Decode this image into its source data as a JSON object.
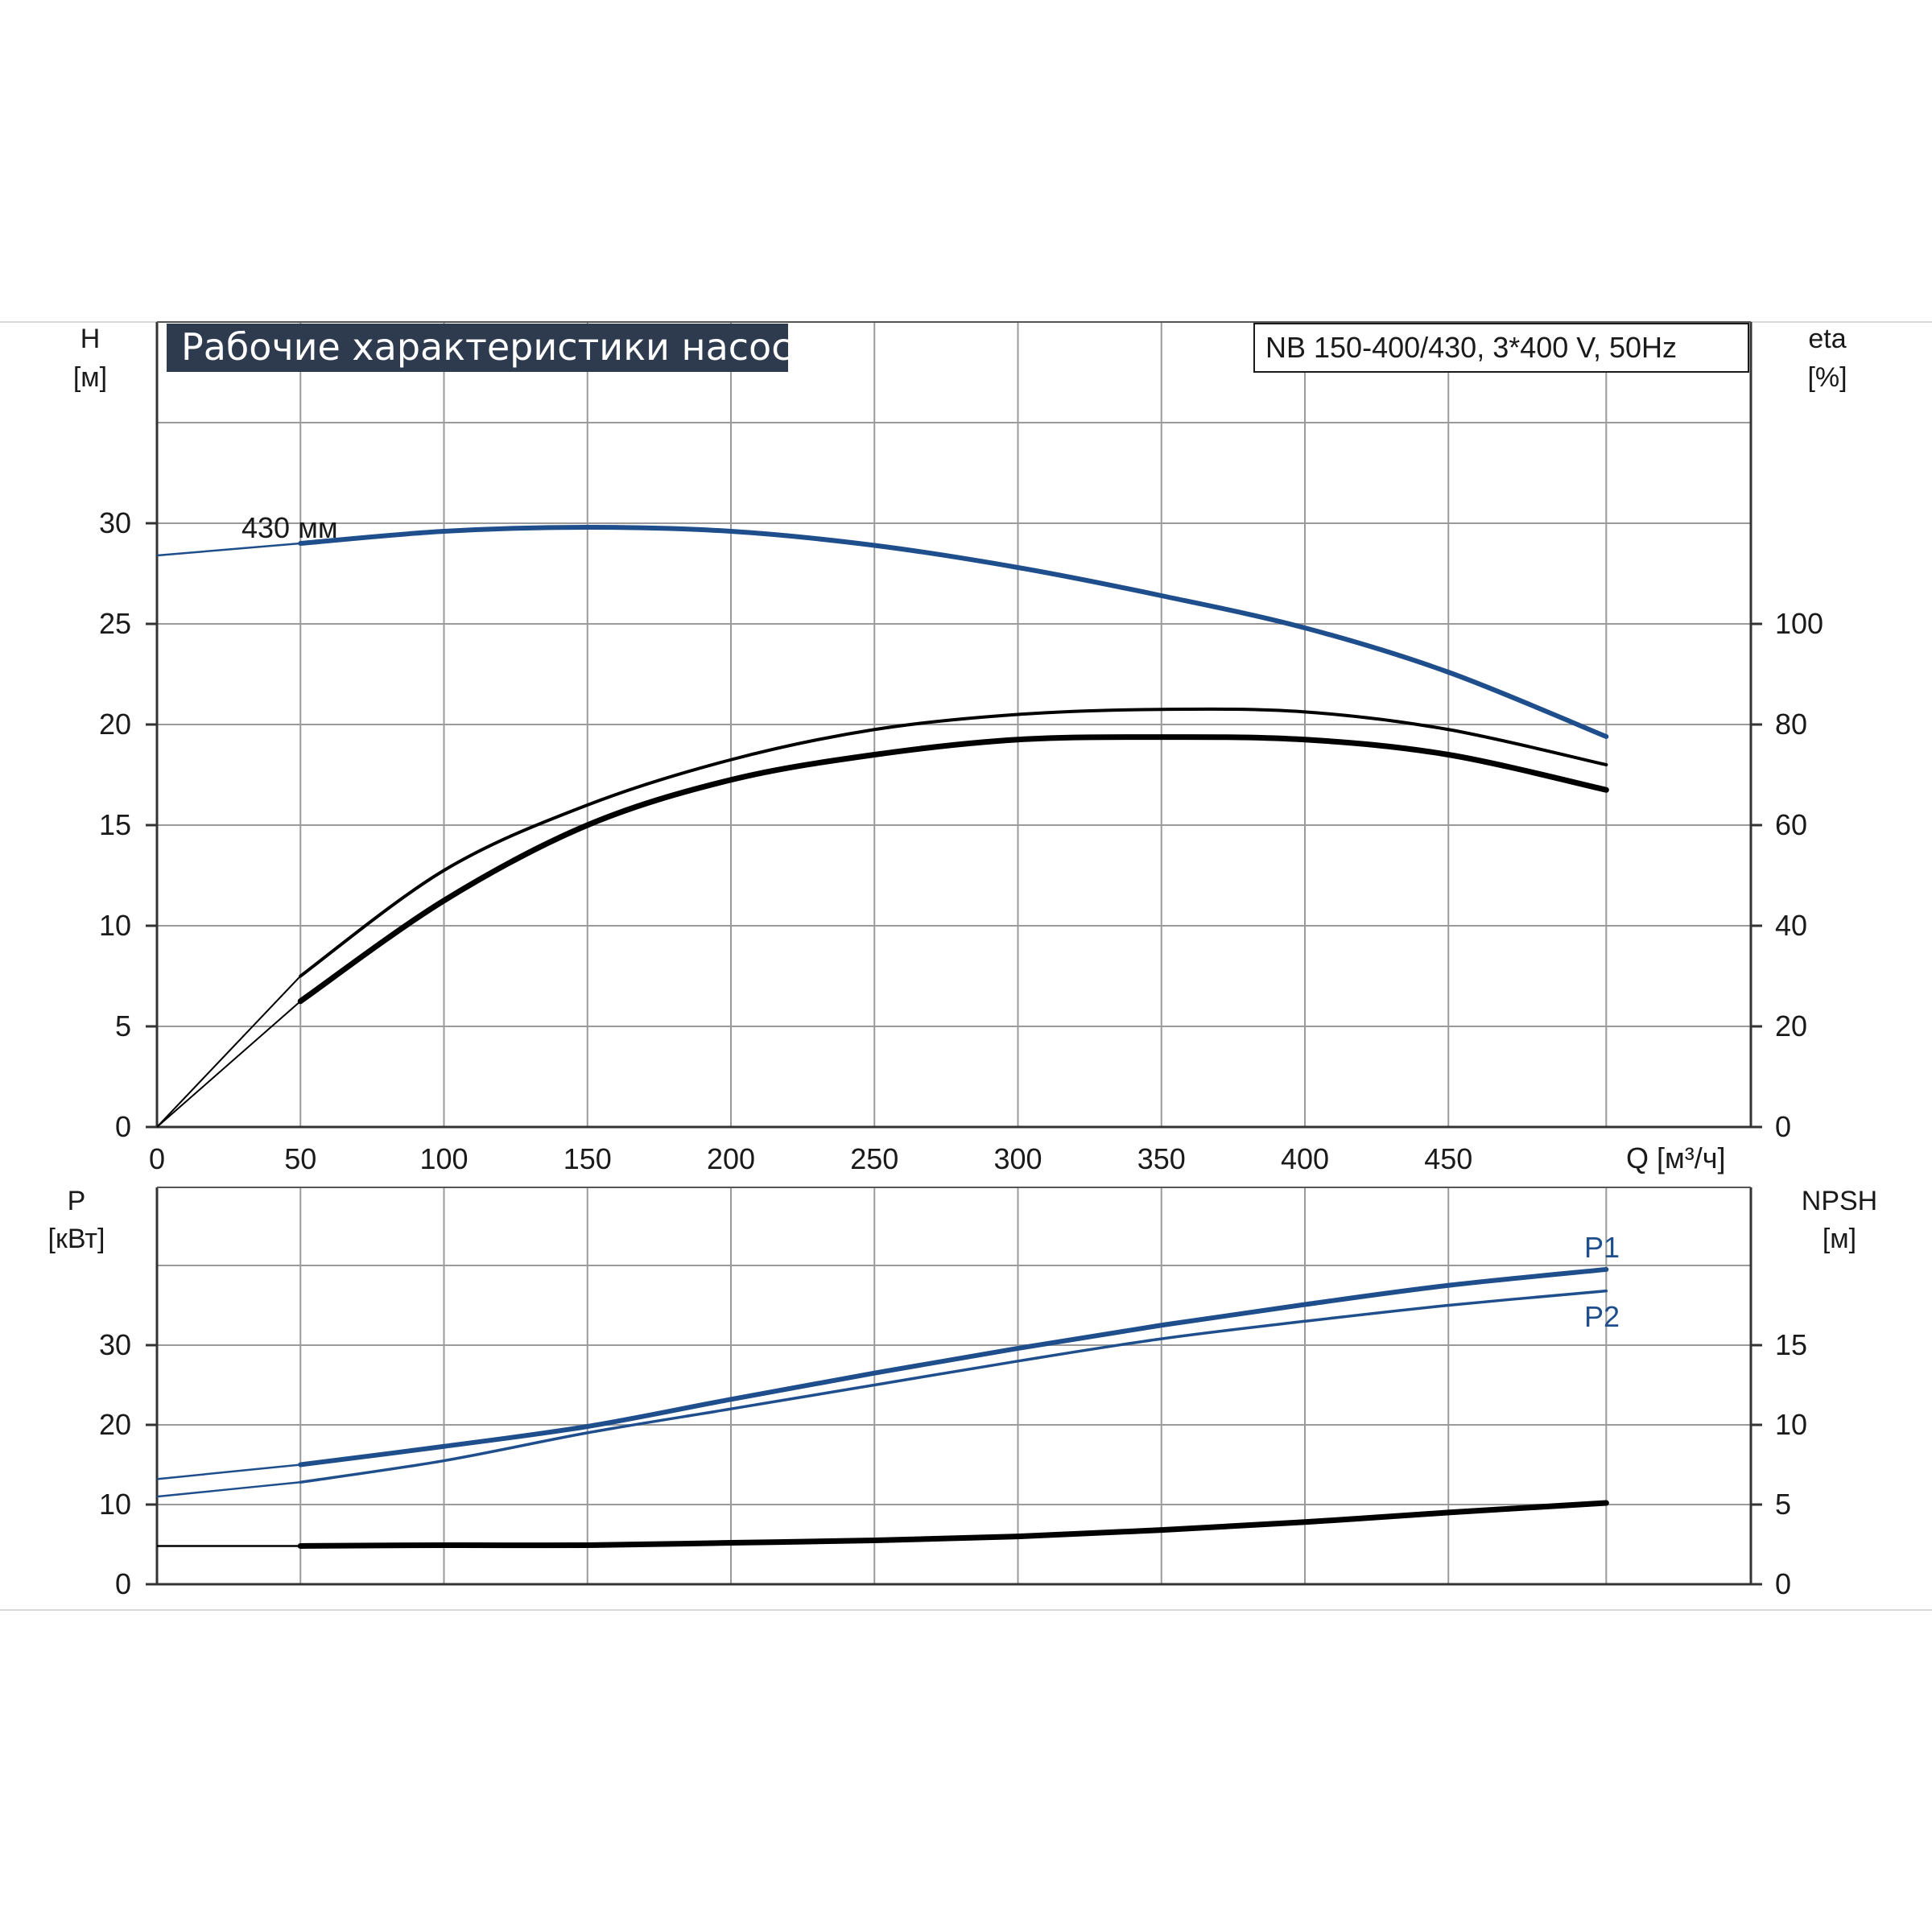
{
  "chart_data": [
    {
      "type": "line",
      "title": "Рабочие характеристики насоса",
      "subtitle": "NB 150-400/430, 3*400 V, 50Hz",
      "xlabel": "Q [м³/ч]",
      "xlim": [
        0,
        555
      ],
      "x_ticks": [
        "0",
        "50",
        "100",
        "150",
        "200",
        "250",
        "300",
        "350",
        "400",
        "450"
      ],
      "left_axis": {
        "label_top": "H",
        "label_unit": "[м]",
        "ylim": [
          0,
          35
        ],
        "ticks": [
          "0",
          "5",
          "10",
          "15",
          "20",
          "25",
          "30"
        ]
      },
      "right_axis": {
        "label_top": "eta",
        "label_unit": "[%]",
        "ylim": [
          0,
          140
        ],
        "ticks": [
          "0",
          "20",
          "40",
          "60",
          "80",
          "100"
        ]
      },
      "grid": true,
      "series": [
        {
          "name": "430 мм",
          "color": "#1f4e8c",
          "axis": "left",
          "x": [
            0,
            50,
            100,
            150,
            200,
            250,
            300,
            350,
            400,
            450,
            505
          ],
          "y": [
            28.4,
            29.0,
            29.6,
            29.8,
            29.6,
            28.9,
            27.8,
            26.4,
            24.8,
            22.6,
            19.4
          ],
          "dashed_from": 0,
          "solid_from": 50
        },
        {
          "color": "#000000",
          "axis": "right",
          "x": [
            0,
            50,
            100,
            150,
            200,
            250,
            300,
            350,
            400,
            450,
            505
          ],
          "y": [
            0,
            30,
            51,
            64,
            73,
            79,
            82,
            83,
            82.5,
            79,
            72
          ]
        },
        {
          "color": "#000000",
          "axis": "right",
          "x": [
            0,
            50,
            100,
            150,
            200,
            250,
            300,
            350,
            400,
            450,
            505
          ],
          "y": [
            0,
            25,
            45,
            60,
            69,
            74,
            77,
            77.5,
            77,
            74,
            67
          ]
        }
      ]
    },
    {
      "type": "line",
      "xlim": [
        0,
        555
      ],
      "left_axis": {
        "label_top": "P",
        "label_unit": "[кВт]",
        "ylim": [
          0,
          40
        ],
        "ticks": [
          "0",
          "10",
          "20",
          "30"
        ]
      },
      "right_axis": {
        "label_top": "NPSH",
        "label_unit": "[м]",
        "ylim": [
          0,
          20
        ],
        "ticks": [
          "0",
          "5",
          "10",
          "15"
        ]
      },
      "grid": true,
      "series": [
        {
          "name": "P1",
          "color": "#1f4e8c",
          "axis": "left",
          "x": [
            0,
            50,
            100,
            150,
            200,
            250,
            300,
            350,
            400,
            450,
            505
          ],
          "y": [
            13.2,
            15.0,
            17.3,
            19.8,
            23.2,
            26.5,
            29.6,
            32.5,
            35.1,
            37.5,
            39.5
          ]
        },
        {
          "name": "P2",
          "color": "#1f4e8c",
          "axis": "left",
          "x": [
            0,
            50,
            100,
            150,
            200,
            250,
            300,
            350,
            400,
            450,
            505
          ],
          "y": [
            11.0,
            12.8,
            15.5,
            19.0,
            22.0,
            25.0,
            28.0,
            30.8,
            33.0,
            35.0,
            36.8
          ]
        },
        {
          "color": "#000000",
          "axis": "right",
          "x": [
            0,
            50,
            100,
            150,
            200,
            250,
            300,
            350,
            400,
            450,
            505
          ],
          "y": [
            2.4,
            2.4,
            2.45,
            2.45,
            2.6,
            2.75,
            3.0,
            3.4,
            3.9,
            4.5,
            5.1
          ]
        }
      ]
    }
  ]
}
